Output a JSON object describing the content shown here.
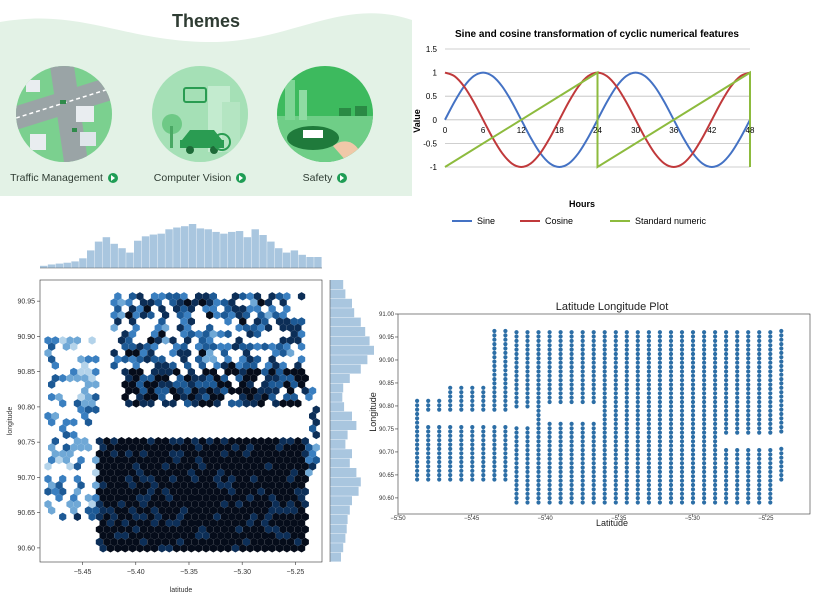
{
  "themes_panel": {
    "title": "Themes",
    "items": [
      {
        "label": "Traffic Management",
        "icon": "road-intersection-icon"
      },
      {
        "label": "Computer Vision",
        "icon": "camera-car-icon"
      },
      {
        "label": "Safety",
        "icon": "hand-car-icon"
      }
    ],
    "colors": {
      "background": "#e3f2e6",
      "button": "#1f9d55"
    }
  },
  "chart_data": [
    {
      "id": "cyclic",
      "type": "line",
      "title": "Sine and cosine transformation of cyclic numerical features",
      "xlabel": "Hours",
      "ylabel": "Value",
      "xlim": [
        0,
        48
      ],
      "ylim": [
        -1,
        1.5
      ],
      "xticks": [
        "0",
        "6",
        "12",
        "18",
        "24",
        "30",
        "36",
        "42",
        "48"
      ],
      "yticks": [
        "-1",
        "-0.5",
        "0",
        "0.5",
        "1",
        "1.5"
      ],
      "x": [
        0,
        1.5,
        3,
        4.5,
        6,
        7.5,
        9,
        10.5,
        12,
        13.5,
        15,
        16.5,
        18,
        19.5,
        21,
        22.5,
        24,
        25.5,
        27,
        28.5,
        30,
        31.5,
        33,
        34.5,
        36,
        37.5,
        39,
        40.5,
        42,
        43.5,
        45,
        46.5,
        48
      ],
      "series": [
        {
          "name": "Sine",
          "color": "#4472c4",
          "values": [
            0,
            0.383,
            0.707,
            0.924,
            1,
            0.924,
            0.707,
            0.383,
            0,
            -0.383,
            -0.707,
            -0.924,
            -1,
            -0.924,
            -0.707,
            -0.383,
            0,
            0.383,
            0.707,
            0.924,
            1,
            0.924,
            0.707,
            0.383,
            0,
            -0.383,
            -0.707,
            -0.924,
            -1,
            -0.924,
            -0.707,
            -0.383,
            0
          ]
        },
        {
          "name": "Cosine",
          "color": "#c0393b",
          "values": [
            1,
            0.924,
            0.707,
            0.383,
            0,
            -0.383,
            -0.707,
            -0.924,
            -1,
            -0.924,
            -0.707,
            -0.383,
            0,
            0.383,
            0.707,
            0.924,
            1,
            0.924,
            0.707,
            0.383,
            0,
            -0.383,
            -0.707,
            -0.924,
            -1,
            -0.924,
            -0.707,
            -0.383,
            0,
            0.383,
            0.707,
            0.924,
            1
          ]
        },
        {
          "name": "Standard numeric",
          "color": "#8dbb3e",
          "points": [
            [
              0,
              -1
            ],
            [
              24,
              1
            ],
            [
              24,
              -1
            ],
            [
              48,
              1
            ],
            [
              48,
              -1
            ]
          ]
        }
      ],
      "grid": true,
      "legend": "bottom"
    },
    {
      "id": "hexbin",
      "type": "heatmap",
      "subtype": "hexbin-joint",
      "xlabel": "latitude",
      "ylabel": "longitude",
      "xlim": [
        -5.49,
        -5.225
      ],
      "ylim": [
        90.58,
        90.98
      ],
      "xticks": [
        -5.45,
        -5.4,
        -5.35,
        -5.3,
        -5.25
      ],
      "yticks": [
        90.6,
        90.65,
        90.7,
        90.75,
        90.8,
        90.85,
        90.9,
        90.95
      ],
      "colormap": "Blues",
      "x_marginal": [
        0.05,
        0.08,
        0.1,
        0.12,
        0.15,
        0.22,
        0.4,
        0.6,
        0.7,
        0.55,
        0.45,
        0.35,
        0.62,
        0.72,
        0.76,
        0.78,
        0.88,
        0.92,
        0.95,
        1.0,
        0.9,
        0.88,
        0.82,
        0.78,
        0.82,
        0.84,
        0.7,
        0.88,
        0.75,
        0.6,
        0.45,
        0.35,
        0.4,
        0.3,
        0.25,
        0.25
      ],
      "y_marginal": [
        0.3,
        0.35,
        0.5,
        0.55,
        0.7,
        0.8,
        0.9,
        1.0,
        0.85,
        0.7,
        0.45,
        0.3,
        0.28,
        0.32,
        0.5,
        0.6,
        0.4,
        0.35,
        0.5,
        0.45,
        0.6,
        0.7,
        0.65,
        0.5,
        0.45,
        0.4,
        0.38,
        0.35,
        0.3,
        0.25
      ]
    },
    {
      "id": "scatter",
      "type": "scatter",
      "title": "Latitude Longitude Plot",
      "xlabel": "Latitude",
      "ylabel": "Longitude",
      "xlim": [
        -5.5,
        -5.22
      ],
      "ylim": [
        90.565,
        91.0
      ],
      "xticks": [
        "-5.50",
        "-5.45",
        "-5.40",
        "-5.35",
        "-5.30",
        "-5.25"
      ],
      "yticks": [
        "90.60",
        "90.65",
        "90.70",
        "90.75",
        "90.80",
        "90.85",
        "90.90",
        "90.95",
        "91.00"
      ],
      "color": "#2c6ea6"
    }
  ]
}
